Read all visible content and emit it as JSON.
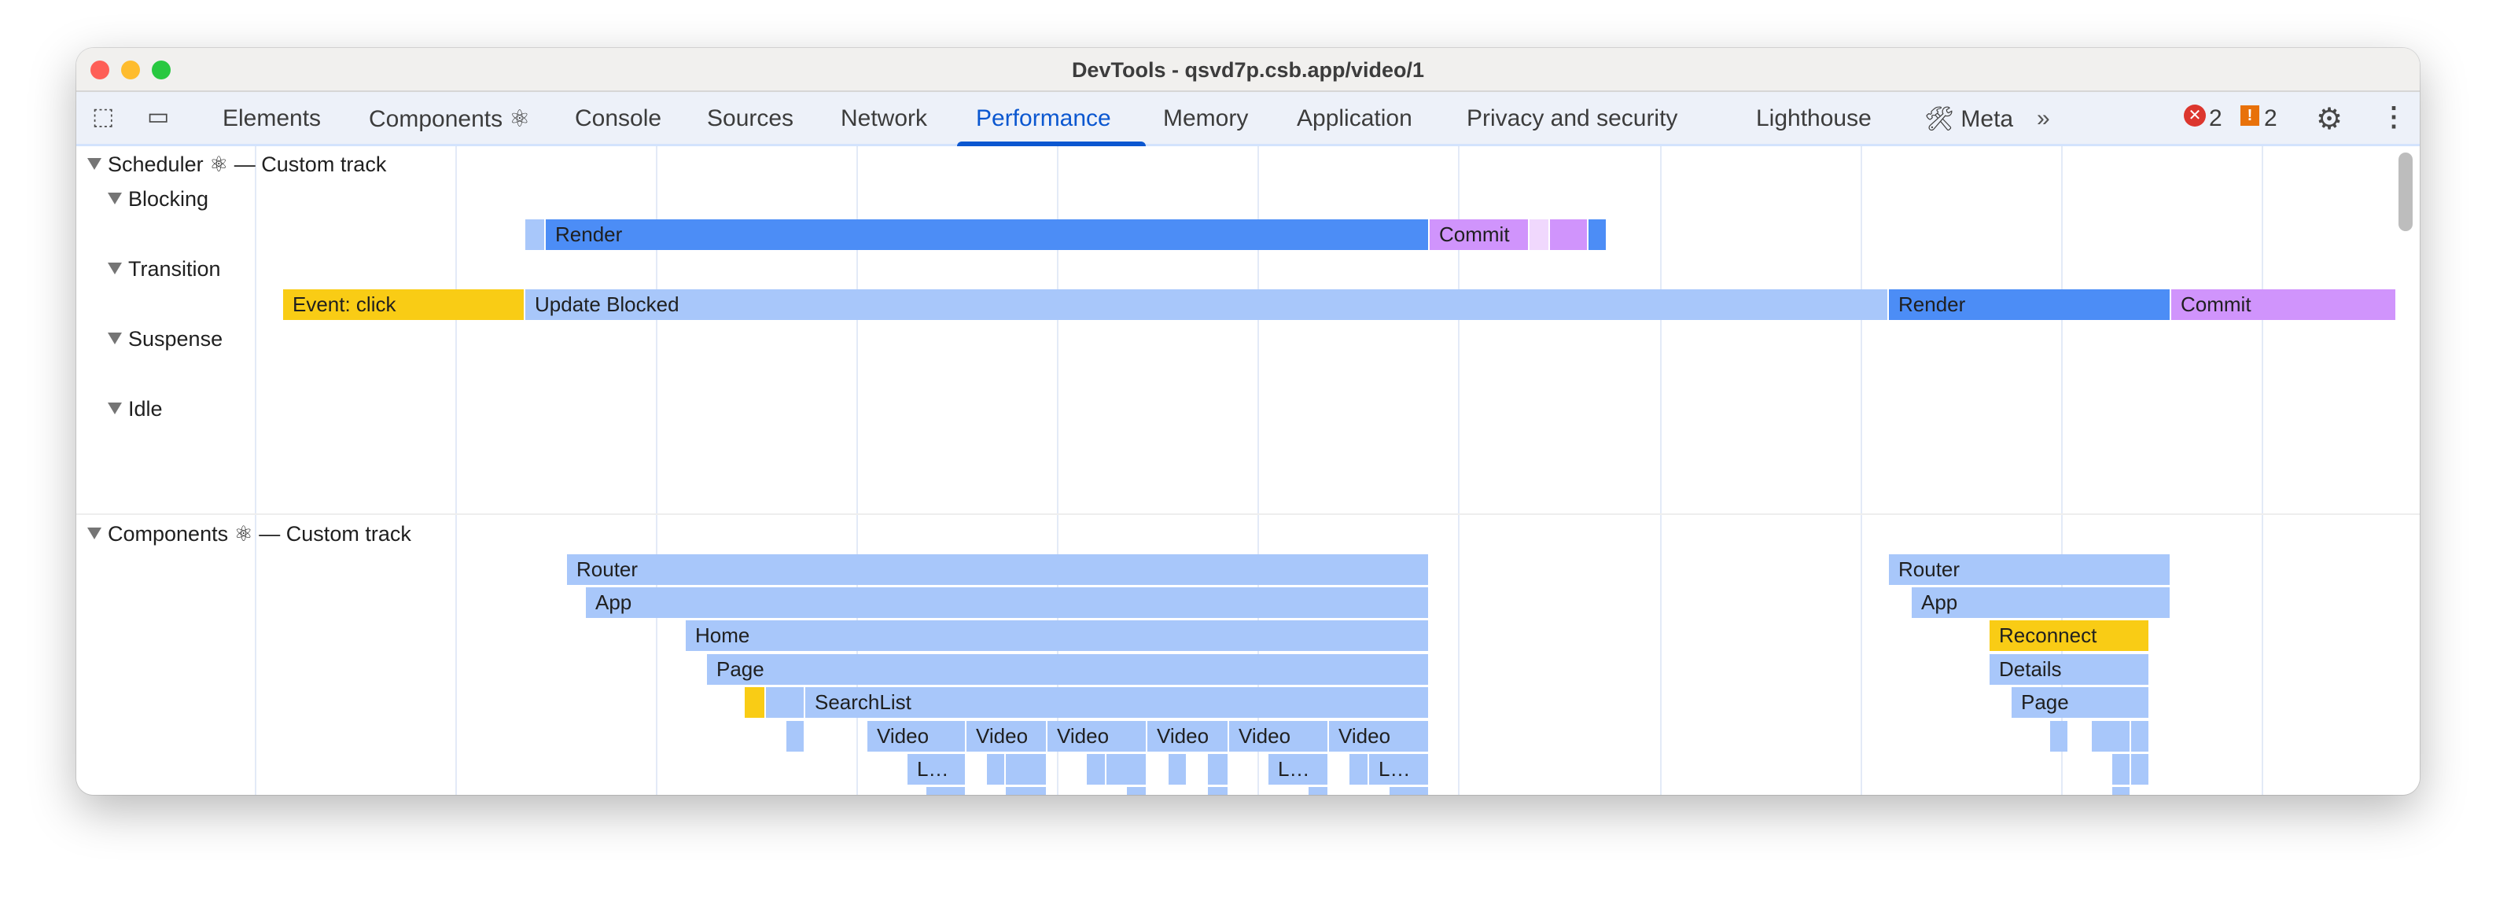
{
  "window": {
    "title": "DevTools - qsvd7p.csb.app/video/1"
  },
  "toolbar": {
    "tabs": [
      {
        "label": "Elements"
      },
      {
        "label": "Components ⚛"
      },
      {
        "label": "Console"
      },
      {
        "label": "Sources"
      },
      {
        "label": "Network"
      },
      {
        "label": "Performance",
        "active": true
      },
      {
        "label": "Memory"
      },
      {
        "label": "Application"
      },
      {
        "label": "Privacy and security"
      },
      {
        "label": "Lighthouse"
      },
      {
        "label": "🛠 Meta"
      }
    ],
    "more": "»",
    "errors": "2",
    "warnings": "2",
    "icons": [
      "inspect-element-icon",
      "device-toolbar-icon",
      "more-tabs-icon",
      "error-icon",
      "warning-icon",
      "settings-gear-icon",
      "kebab-menu-icon"
    ]
  },
  "tracks": {
    "scheduler": "Scheduler ⚛ — Custom track",
    "lanes": [
      "Blocking",
      "Transition",
      "Suspense",
      "Idle"
    ],
    "components": "Components ⚛ — Custom track"
  },
  "bars": {
    "blocking": [
      "",
      "Render",
      "Commit",
      "",
      "",
      ""
    ],
    "transition": [
      "Event: click",
      "Update Blocked",
      "Render",
      "Commit"
    ],
    "components": [
      "Router",
      "App",
      "Home",
      "Page",
      "",
      "",
      "SearchList",
      "",
      "Video",
      "Video",
      "Video",
      "Video",
      "Video",
      "Video",
      "L…",
      "",
      "",
      "",
      "",
      "",
      "",
      "L…",
      "",
      "L…",
      "",
      "",
      "",
      "",
      "",
      "",
      "Router",
      "App",
      "Reconnect",
      "Details",
      "Page",
      "",
      "",
      "",
      "",
      "",
      ""
    ]
  },
  "colors": {
    "render": "#4c8df6",
    "light": "#a8c7fa",
    "commit": "#d094fc",
    "commit_pale": "#f0d8fd",
    "event": "#f9cc15",
    "accent": "#0b57d0"
  }
}
